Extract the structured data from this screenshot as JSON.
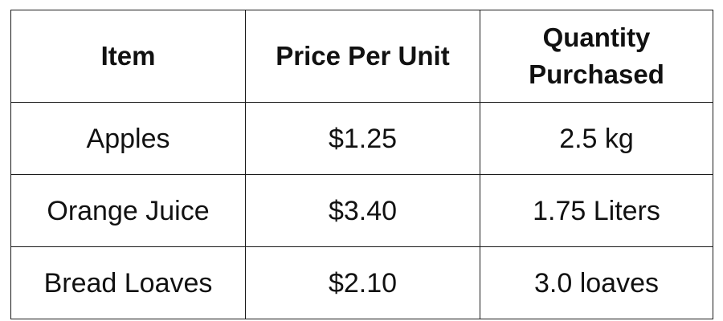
{
  "table": {
    "headers": [
      "Item",
      "Price Per Unit",
      "Quantity Purchased"
    ],
    "header_lines": {
      "quantity": [
        "Quantity",
        "Purchased"
      ]
    },
    "rows": [
      {
        "item": "Apples",
        "price": "$1.25",
        "quantity": "2.5 kg"
      },
      {
        "item": "Orange Juice",
        "price": "$3.40",
        "quantity": "1.75 Liters"
      },
      {
        "item": "Bread Loaves",
        "price": "$2.10",
        "quantity": "3.0 loaves"
      }
    ]
  },
  "colors": {
    "border": "#1a1a1a",
    "text": "#111111",
    "background": "#ffffff"
  }
}
